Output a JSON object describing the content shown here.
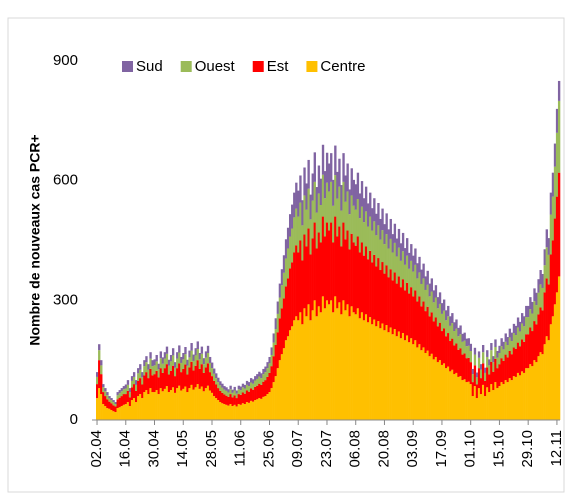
{
  "chart_data": {
    "type": "stacked_bar",
    "y_label": "Nombre de nouveaux cas PCR+",
    "categories": [
      "02.04",
      null,
      null,
      null,
      null,
      null,
      null,
      null,
      null,
      null,
      null,
      null,
      null,
      null,
      "16.04",
      null,
      null,
      null,
      null,
      null,
      null,
      null,
      null,
      null,
      null,
      null,
      null,
      null,
      "30.04",
      null,
      null,
      null,
      null,
      null,
      null,
      null,
      null,
      null,
      null,
      null,
      null,
      null,
      "14.05",
      null,
      null,
      null,
      null,
      null,
      null,
      null,
      null,
      null,
      null,
      null,
      null,
      null,
      "28.05",
      null,
      null,
      null,
      null,
      null,
      null,
      null,
      null,
      null,
      null,
      null,
      null,
      null,
      "11.06",
      null,
      null,
      null,
      null,
      null,
      null,
      null,
      null,
      null,
      null,
      null,
      null,
      null,
      "25.06",
      null,
      null,
      null,
      null,
      null,
      null,
      null,
      null,
      null,
      null,
      null,
      null,
      null,
      "09.07",
      null,
      null,
      null,
      null,
      null,
      null,
      null,
      null,
      null,
      null,
      null,
      null,
      null,
      "23.07",
      null,
      null,
      null,
      null,
      null,
      null,
      null,
      null,
      null,
      null,
      null,
      null,
      null,
      "06.08",
      null,
      null,
      null,
      null,
      null,
      null,
      null,
      null,
      null,
      null,
      null,
      null,
      null,
      "20.08",
      null,
      null,
      null,
      null,
      null,
      null,
      null,
      null,
      null,
      null,
      null,
      null,
      null,
      "03.09",
      null,
      null,
      null,
      null,
      null,
      null,
      null,
      null,
      null,
      null,
      null,
      null,
      null,
      "17.09",
      null,
      null,
      null,
      null,
      null,
      null,
      null,
      null,
      null,
      null,
      null,
      null,
      null,
      "01.10",
      null,
      null,
      null,
      null,
      null,
      null,
      null,
      null,
      null,
      null,
      null,
      null,
      null,
      "15.10",
      null,
      null,
      null,
      null,
      null,
      null,
      null,
      null,
      null,
      null,
      null,
      null,
      null,
      "29.10",
      null,
      null,
      null,
      null,
      null,
      null,
      null,
      null,
      null,
      null,
      null,
      null,
      null,
      "12.11",
      null
    ],
    "series": [
      {
        "name": "Sud",
        "color": "#8064a2",
        "values": [
          12,
          15,
          13,
          8,
          8,
          8,
          6,
          5,
          5,
          5,
          8,
          8,
          8,
          8,
          10,
          12,
          10,
          12,
          12,
          12,
          13,
          14,
          13,
          15,
          15,
          14,
          16,
          15,
          15,
          16,
          14,
          17,
          16,
          16,
          18,
          15,
          16,
          18,
          14,
          16,
          18,
          15,
          16,
          18,
          15,
          17,
          19,
          16,
          18,
          19,
          16,
          18,
          15,
          16,
          18,
          15,
          14,
          13,
          12,
          11,
          10,
          10,
          9,
          9,
          8,
          9,
          8,
          9,
          8,
          9,
          9,
          9,
          9,
          10,
          10,
          11,
          11,
          11,
          12,
          12,
          12,
          13,
          14,
          15,
          16,
          19,
          23,
          27,
          31,
          35,
          40,
          44,
          48,
          52,
          56,
          60,
          62,
          65,
          65,
          68,
          63,
          70,
          66,
          72,
          62,
          68,
          74,
          64,
          70,
          66,
          75,
          68,
          75,
          70,
          72,
          65,
          74,
          67,
          70,
          64,
          72,
          66,
          70,
          62,
          68,
          65,
          64,
          66,
          62,
          64,
          60,
          62,
          58,
          60,
          56,
          58,
          54,
          56,
          52,
          54,
          50,
          52,
          48,
          50,
          46,
          48,
          45,
          47,
          44,
          46,
          42,
          44,
          40,
          42,
          40,
          41,
          38,
          39,
          36,
          37,
          34,
          35,
          32,
          33,
          30,
          31,
          28,
          29,
          27,
          28,
          25,
          26,
          24,
          25,
          22,
          23,
          21,
          22,
          20,
          20,
          19,
          19,
          18,
          13,
          17,
          12,
          16,
          14,
          18,
          13,
          17,
          15,
          18,
          15,
          19,
          17,
          18,
          20,
          19,
          21,
          20,
          22,
          21,
          23,
          23,
          25,
          24,
          26,
          25,
          28,
          28,
          30,
          29,
          32,
          31,
          34,
          36,
          35,
          40,
          45,
          42,
          55,
          60,
          58,
          60,
          50
        ]
      },
      {
        "name": "Ouest",
        "color": "#9bbb59",
        "values": [
          18,
          25,
          22,
          12,
          12,
          10,
          8,
          8,
          8,
          6,
          10,
          11,
          12,
          12,
          14,
          15,
          13,
          16,
          18,
          15,
          19,
          21,
          18,
          23,
          25,
          21,
          26,
          23,
          22,
          24,
          20,
          25,
          23,
          24,
          26,
          22,
          24,
          26,
          21,
          24,
          27,
          23,
          24,
          26,
          22,
          25,
          28,
          24,
          26,
          28,
          24,
          26,
          22,
          24,
          26,
          23,
          20,
          18,
          16,
          15,
          14,
          13,
          12,
          12,
          11,
          12,
          11,
          12,
          11,
          12,
          12,
          13,
          13,
          14,
          14,
          15,
          15,
          16,
          17,
          18,
          17,
          19,
          20,
          22,
          24,
          28,
          34,
          40,
          46,
          52,
          58,
          64,
          70,
          75,
          80,
          85,
          88,
          92,
          90,
          95,
          88,
          98,
          92,
          100,
          88,
          95,
          102,
          90,
          98,
          94,
          105,
          96,
          100,
          98,
          102,
          92,
          104,
          95,
          100,
          90,
          102,
          94,
          98,
          88,
          96,
          92,
          90,
          94,
          86,
          90,
          84,
          88,
          82,
          86,
          80,
          84,
          78,
          82,
          76,
          80,
          74,
          78,
          72,
          76,
          70,
          74,
          68,
          72,
          66,
          70,
          64,
          68,
          62,
          66,
          62,
          64,
          58,
          60,
          56,
          58,
          53,
          55,
          50,
          52,
          48,
          50,
          45,
          47,
          43,
          44,
          40,
          42,
          38,
          39,
          36,
          37,
          34,
          35,
          32,
          32,
          30,
          30,
          28,
          20,
          27,
          18,
          26,
          21,
          28,
          20,
          26,
          23,
          29,
          24,
          30,
          26,
          28,
          30,
          29,
          32,
          31,
          34,
          33,
          36,
          35,
          38,
          37,
          40,
          39,
          43,
          43,
          46,
          44,
          50,
          48,
          54,
          58,
          56,
          68,
          78,
          74,
          100,
          110,
          130,
          160,
          180
        ]
      },
      {
        "name": "Est",
        "color": "#ff0000",
        "values": [
          35,
          70,
          50,
          30,
          25,
          22,
          18,
          17,
          15,
          14,
          22,
          24,
          25,
          27,
          25,
          28,
          22,
          32,
          35,
          28,
          38,
          40,
          34,
          42,
          45,
          40,
          48,
          42,
          45,
          48,
          42,
          50,
          46,
          52,
          55,
          44,
          48,
          54,
          42,
          50,
          56,
          46,
          50,
          55,
          44,
          52,
          58,
          48,
          54,
          60,
          50,
          56,
          46,
          52,
          56,
          46,
          42,
          38,
          34,
          30,
          28,
          26,
          24,
          23,
          22,
          25,
          22,
          24,
          21,
          25,
          25,
          27,
          26,
          29,
          28,
          31,
          30,
          33,
          34,
          36,
          35,
          38,
          40,
          43,
          48,
          55,
          65,
          78,
          90,
          105,
          115,
          125,
          135,
          145,
          155,
          160,
          170,
          178,
          170,
          180,
          160,
          185,
          175,
          190,
          165,
          180,
          195,
          170,
          185,
          175,
          200,
          180,
          195,
          185,
          195,
          175,
          200,
          180,
          190,
          170,
          195,
          178,
          185,
          168,
          182,
          175,
          172,
          180,
          165,
          175,
          162,
          170,
          158,
          166,
          155,
          162,
          150,
          158,
          146,
          154,
          142,
          150,
          138,
          146,
          135,
          142,
          132,
          138,
          128,
          135,
          125,
          132,
          122,
          128,
          120,
          125,
          115,
          120,
          110,
          115,
          105,
          110,
          100,
          104,
          95,
          99,
          90,
          94,
          85,
          88,
          80,
          84,
          76,
          78,
          72,
          74,
          68,
          70,
          64,
          65,
          60,
          60,
          55,
          35,
          52,
          34,
          50,
          40,
          54,
          38,
          50,
          44,
          56,
          46,
          58,
          50,
          55,
          60,
          58,
          64,
          62,
          68,
          65,
          72,
          70,
          76,
          73,
          80,
          78,
          85,
          85,
          92,
          88,
          98,
          95,
          105,
          112,
          110,
          130,
          145,
          140,
          175,
          190,
          215,
          240,
          260
        ]
      },
      {
        "name": "Centre",
        "color": "#ffc000",
        "values": [
          55,
          80,
          65,
          40,
          35,
          30,
          28,
          25,
          22,
          20,
          30,
          32,
          35,
          38,
          40,
          45,
          35,
          50,
          55,
          45,
          60,
          65,
          55,
          70,
          75,
          65,
          80,
          70,
          70,
          75,
          65,
          80,
          72,
          78,
          85,
          70,
          75,
          82,
          68,
          80,
          86,
          74,
          78,
          84,
          70,
          80,
          88,
          76,
          82,
          90,
          78,
          84,
          72,
          80,
          86,
          74,
          68,
          60,
          55,
          50,
          45,
          42,
          40,
          38,
          36,
          40,
          35,
          38,
          34,
          40,
          38,
          42,
          40,
          45,
          43,
          48,
          46,
          50,
          52,
          55,
          53,
          58,
          60,
          65,
          70,
          80,
          95,
          110,
          130,
          150,
          165,
          180,
          200,
          210,
          225,
          235,
          250,
          260,
          250,
          270,
          240,
          280,
          260,
          290,
          250,
          275,
          300,
          260,
          285,
          270,
          310,
          280,
          300,
          290,
          300,
          270,
          310,
          280,
          295,
          265,
          300,
          275,
          290,
          260,
          285,
          270,
          265,
          280,
          255,
          270,
          250,
          265,
          245,
          258,
          240,
          252,
          235,
          248,
          230,
          242,
          225,
          238,
          220,
          232,
          215,
          228,
          210,
          222,
          205,
          218,
          200,
          212,
          195,
          205,
          190,
          200,
          182,
          190,
          175,
          182,
          168,
          174,
          160,
          166,
          152,
          158,
          145,
          150,
          138,
          142,
          130,
          134,
          122,
          126,
          115,
          118,
          108,
          110,
          100,
          102,
          95,
          96,
          90,
          60,
          85,
          55,
          80,
          65,
          88,
          60,
          82,
          70,
          90,
          75,
          95,
          80,
          85,
          95,
          90,
          100,
          95,
          105,
          100,
          110,
          108,
          118,
          112,
          122,
          118,
          130,
          130,
          140,
          135,
          150,
          145,
          160,
          170,
          165,
          190,
          210,
          200,
          240,
          260,
          290,
          320,
          360
        ]
      }
    ],
    "ylim": [
      0,
      900
    ],
    "yticks": [
      0,
      300,
      600,
      900
    ],
    "grid": false,
    "legend": "top"
  }
}
